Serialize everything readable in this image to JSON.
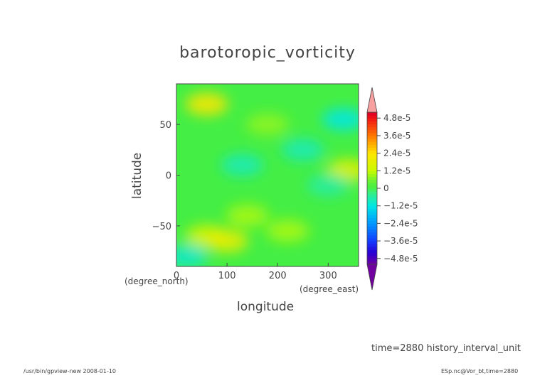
{
  "chart_data": {
    "type": "heatmap",
    "title": "barotoropic_vorticity",
    "xlabel": "longitude",
    "ylabel": "latitude",
    "x_unit": "(degree_east)",
    "y_unit": "(degree_north)",
    "xlim": [
      0,
      360
    ],
    "ylim": [
      -90,
      90
    ],
    "x_ticks": [
      0,
      100,
      200,
      300
    ],
    "y_ticks": [
      50,
      0,
      -50
    ],
    "colorbar": {
      "min": -5.2e-05,
      "max": 5.2e-05,
      "tick_values": [
        4.8e-05,
        3.6e-05,
        2.4e-05,
        1.2e-05,
        0,
        -1.2e-05,
        -2.4e-05,
        -3.6e-05,
        -4.8e-05
      ],
      "tick_labels": [
        "4.8e-5",
        "3.6e-5",
        "2.4e-5",
        "1.2e-5",
        "0",
        "−1.2e-5",
        "−2.4e-5",
        "−3.6e-5",
        "−4.8e-5"
      ],
      "extend": "both",
      "over_color": "#f8a0a0",
      "under_color": "#7000a0"
    },
    "features": [
      {
        "lon": 60,
        "lat": 70,
        "value": 2.4e-05
      },
      {
        "lon": 60,
        "lat": -60,
        "value": 1.6e-05
      },
      {
        "lon": 100,
        "lat": -65,
        "value": 2e-05
      },
      {
        "lon": 140,
        "lat": -40,
        "value": 1e-05
      },
      {
        "lon": 340,
        "lat": 5,
        "value": 1.8e-05
      },
      {
        "lon": 220,
        "lat": -55,
        "value": 1e-05
      },
      {
        "lon": 330,
        "lat": 55,
        "value": -1.2e-05
      },
      {
        "lon": 20,
        "lat": -80,
        "value": -1e-05
      },
      {
        "lon": 130,
        "lat": 10,
        "value": -8e-06
      },
      {
        "lon": 250,
        "lat": 25,
        "value": -8e-06
      },
      {
        "lon": 300,
        "lat": -10,
        "value": -6e-06
      },
      {
        "lon": 180,
        "lat": 50,
        "value": 8e-06
      }
    ]
  },
  "footer": {
    "time_label": "time=2880  history_interval_unit",
    "program": "/usr/bin/gpview-new   2008-01-10",
    "file": "ESp.nc@Vor_bt,time=2880"
  }
}
